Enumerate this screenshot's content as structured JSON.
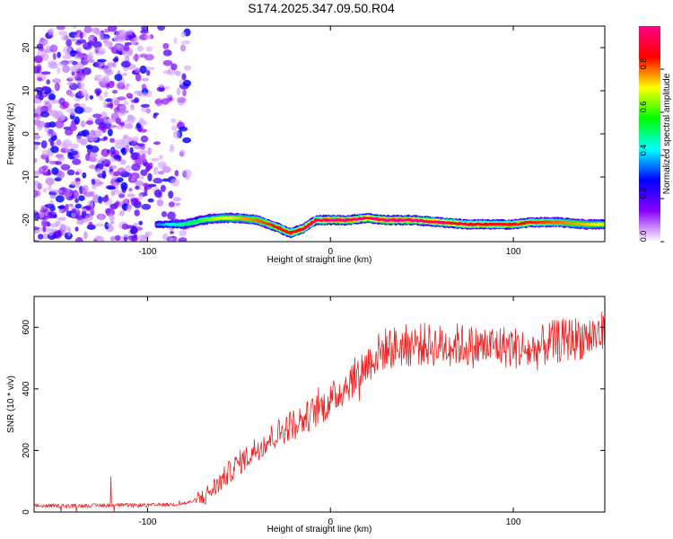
{
  "title": "S174.2025.347.09.50.R04",
  "chart_data": [
    {
      "type": "heatmap",
      "xlabel": "Height of straight line (km)",
      "ylabel": "Frequency (Hz)",
      "xlim": [
        -162,
        150
      ],
      "ylim": [
        -25,
        25
      ],
      "xticks": [
        -100,
        0,
        100
      ],
      "yticks": [
        -20,
        -10,
        0,
        10,
        20
      ],
      "grid": false,
      "colorbar": {
        "label": "Normalized spectral amplitude",
        "range": [
          0,
          1
        ],
        "ticks": [
          "0.0",
          "0.2",
          "0.4",
          "0.6",
          "0.8"
        ],
        "tick_values": [
          0.0,
          0.2,
          0.4,
          0.6,
          0.8
        ],
        "colors": [
          "#ffffff",
          "#8800ff",
          "#0000ff",
          "#00ffff",
          "#00ff00",
          "#ffff00",
          "#ff0000",
          "#ff0088"
        ]
      },
      "noise_region": {
        "x_range": [
          -162,
          -78
        ],
        "y_range": [
          -25,
          25
        ],
        "amplitude_range": [
          0.05,
          0.3
        ]
      },
      "signal_ridge": {
        "x": [
          -95,
          -80,
          -70,
          -60,
          -50,
          -40,
          -30,
          -22,
          -15,
          -8,
          0,
          10,
          20,
          30,
          45,
          60,
          75,
          90,
          100,
          110,
          125,
          140,
          150
        ],
        "frequency": [
          -21,
          -21,
          -20,
          -19.5,
          -19.5,
          -20,
          -21.5,
          -23,
          -22,
          -20,
          -20,
          -20,
          -19.5,
          -20,
          -20,
          -20.5,
          -21,
          -21,
          -21,
          -20.5,
          -20.5,
          -21,
          -21
        ],
        "amplitude": [
          0.35,
          0.5,
          0.6,
          0.7,
          0.75,
          0.8,
          0.85,
          0.85,
          0.9,
          0.95,
          1.0,
          1.0,
          0.95,
          1.0,
          1.0,
          0.95,
          0.9,
          0.85,
          0.85,
          0.85,
          0.8,
          0.75,
          0.7
        ]
      }
    },
    {
      "type": "line",
      "xlabel": "Height of straight line (km)",
      "ylabel": "SNR (10 * v/v)",
      "xlim": [
        -162,
        150
      ],
      "ylim": [
        0,
        700
      ],
      "xticks": [
        -100,
        0,
        100
      ],
      "yticks": [
        0,
        200,
        400,
        600
      ],
      "grid": false,
      "color": "#ee2222",
      "x": [
        -162,
        -140,
        -120,
        -100,
        -85,
        -78,
        -70,
        -65,
        -60,
        -55,
        -50,
        -45,
        -40,
        -35,
        -30,
        -25,
        -20,
        -15,
        -10,
        -5,
        0,
        5,
        10,
        15,
        20,
        25,
        30,
        40,
        50,
        60,
        70,
        80,
        90,
        100,
        110,
        120,
        130,
        140,
        150
      ],
      "y": [
        20,
        20,
        22,
        22,
        25,
        30,
        45,
        70,
        100,
        130,
        160,
        180,
        210,
        230,
        250,
        270,
        290,
        300,
        320,
        340,
        360,
        390,
        420,
        450,
        480,
        510,
        530,
        540,
        545,
        540,
        545,
        535,
        540,
        535,
        520,
        550,
        560,
        570,
        580
      ]
    }
  ]
}
